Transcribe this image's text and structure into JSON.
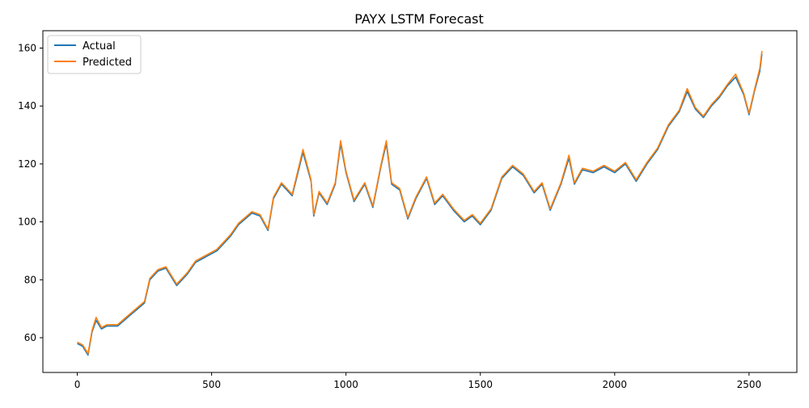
{
  "chart_data": {
    "type": "line",
    "title": "PAYX LSTM Forecast",
    "xlabel": "",
    "ylabel": "",
    "xlim": [
      -128,
      2678
    ],
    "ylim": [
      48,
      166
    ],
    "x_ticks": [
      0,
      500,
      1000,
      1500,
      2000,
      2500
    ],
    "y_ticks": [
      60,
      80,
      100,
      120,
      140,
      160
    ],
    "x_tick_labels": [
      "0",
      "500",
      "1000",
      "1500",
      "2000",
      "2500"
    ],
    "y_tick_labels": [
      "60",
      "80",
      "100",
      "120",
      "140",
      "160"
    ],
    "legend": {
      "placement": "upper-left",
      "entries": [
        "Actual",
        "Predicted"
      ]
    },
    "grid": false,
    "x": [
      0,
      20,
      40,
      55,
      70,
      90,
      110,
      150,
      200,
      250,
      270,
      300,
      330,
      370,
      410,
      440,
      480,
      520,
      570,
      600,
      650,
      680,
      710,
      730,
      760,
      800,
      840,
      870,
      880,
      900,
      930,
      960,
      980,
      1000,
      1030,
      1070,
      1100,
      1130,
      1150,
      1170,
      1200,
      1230,
      1260,
      1300,
      1330,
      1360,
      1400,
      1440,
      1470,
      1500,
      1540,
      1580,
      1620,
      1660,
      1700,
      1730,
      1760,
      1800,
      1830,
      1850,
      1880,
      1920,
      1960,
      2000,
      2040,
      2080,
      2120,
      2160,
      2200,
      2240,
      2270,
      2300,
      2330,
      2360,
      2390,
      2420,
      2450,
      2480,
      2500,
      2520,
      2540,
      2548
    ],
    "series": [
      {
        "name": "Actual",
        "color": "#1f77b4",
        "values": [
          58,
          57,
          54,
          62,
          66,
          63,
          64,
          64,
          68,
          72,
          80,
          83,
          84,
          78,
          82,
          86,
          88,
          90,
          95,
          99,
          103,
          102,
          97,
          108,
          113,
          109,
          124,
          114,
          102,
          110,
          106,
          113,
          127,
          117,
          107,
          113,
          105,
          119,
          127,
          113,
          111,
          101,
          108,
          115,
          106,
          109,
          104,
          100,
          102,
          99,
          104,
          115,
          119,
          116,
          110,
          113,
          104,
          113,
          122,
          113,
          118,
          117,
          119,
          117,
          120,
          114,
          120,
          125,
          133,
          138,
          145,
          139,
          136,
          140,
          143,
          147,
          150,
          144,
          137,
          145,
          152,
          158
        ]
      },
      {
        "name": "Predicted",
        "color": "#ff7f0e",
        "values": [
          58.5,
          57.5,
          54.5,
          62.5,
          67,
          63.5,
          64.5,
          64.5,
          68.5,
          72.5,
          80.5,
          83.5,
          84.5,
          78.5,
          82.5,
          86.5,
          88.5,
          90.5,
          95.5,
          99.5,
          103.5,
          102.5,
          97.5,
          108.5,
          113.5,
          109.5,
          125,
          114.5,
          102.5,
          110.5,
          106.5,
          113.5,
          128,
          117.5,
          107.5,
          113.5,
          105.5,
          119.5,
          128,
          113.5,
          111.5,
          101.5,
          108.5,
          115.5,
          106.5,
          109.5,
          104.5,
          100.5,
          102.5,
          99.5,
          104.5,
          115.5,
          119.5,
          116.5,
          110.5,
          113.5,
          104.5,
          113.5,
          123,
          113.5,
          118.5,
          117.5,
          119.5,
          117.5,
          120.5,
          114.5,
          120.5,
          125.5,
          133.5,
          138.5,
          146,
          139.5,
          136.5,
          140.5,
          143.5,
          147.5,
          151,
          144.5,
          137.5,
          145.5,
          153,
          159
        ]
      }
    ]
  }
}
